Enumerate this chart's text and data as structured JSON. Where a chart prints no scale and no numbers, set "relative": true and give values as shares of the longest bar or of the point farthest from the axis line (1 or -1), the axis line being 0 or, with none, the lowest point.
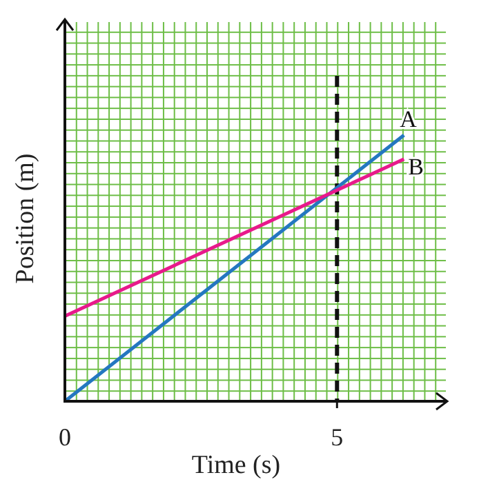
{
  "chart_data": {
    "type": "line",
    "xlabel": "Time (s)",
    "ylabel": "Position (m)",
    "relative": true,
    "xlim": [
      0,
      7
    ],
    "xticks": [
      0,
      5
    ],
    "x": [
      0,
      6.23
    ],
    "line_style": "solid",
    "marker": "none",
    "ref_lines": [
      {
        "axis": "x",
        "value": 5,
        "color": "#111111",
        "line_style": "dashed"
      }
    ],
    "series": [
      {
        "name": "A",
        "color": "#2477c0",
        "values": [
          0,
          1
        ]
      },
      {
        "name": "B",
        "color": "#e8198b",
        "values": [
          0.32,
          0.91
        ]
      }
    ]
  }
}
